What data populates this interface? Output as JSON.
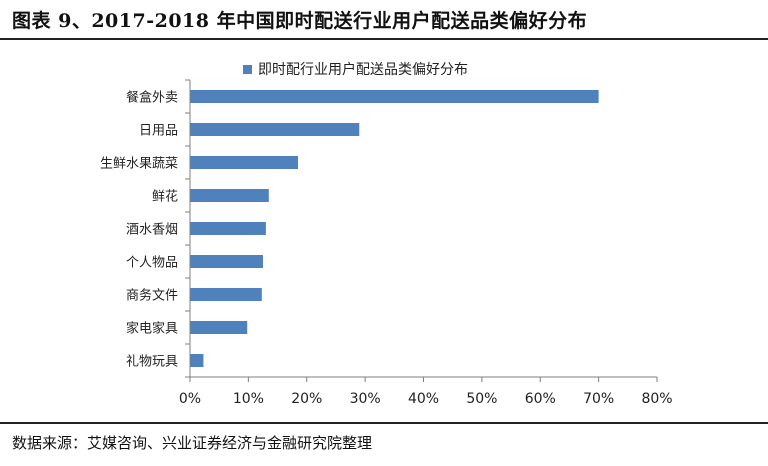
{
  "title": "图表 9、2017-2018 年中国即时配送行业用户配送品类偏好分布",
  "source": "数据来源：艾媒咨询、兴业证券经济与金融研究院整理",
  "colors": {
    "bar": "#4f81bd",
    "axis": "#7f7f7f"
  },
  "chart_data": {
    "type": "bar",
    "orientation": "horizontal",
    "categories": [
      "餐盒外卖",
      "日用品",
      "生鲜水果蔬菜",
      "鲜花",
      "酒水香烟",
      "个人物品",
      "商务文件",
      "家电家具",
      "礼物玩具"
    ],
    "series": [
      {
        "name": "即时配行业用户配送品类偏好分布",
        "values": [
          70,
          29,
          18.5,
          13.5,
          13,
          12.5,
          12.3,
          9.8,
          2.3
        ]
      }
    ],
    "xlim": [
      0,
      80
    ],
    "xticks": [
      0,
      10,
      20,
      30,
      40,
      50,
      60,
      70,
      80
    ],
    "xtick_labels": [
      "0%",
      "10%",
      "20%",
      "30%",
      "40%",
      "50%",
      "60%",
      "70%",
      "80%"
    ],
    "grid": false,
    "legend": "top"
  }
}
